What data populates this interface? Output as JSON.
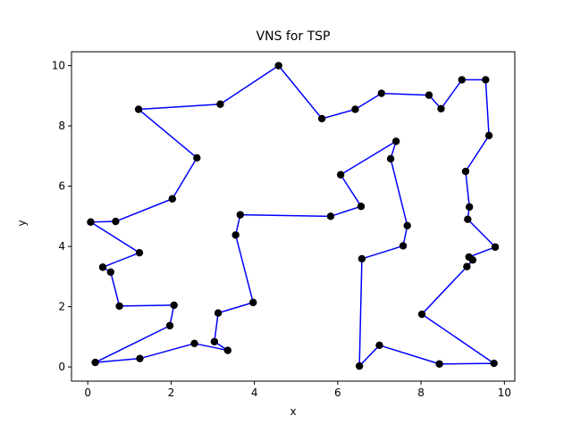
{
  "chart_data": {
    "type": "line",
    "title": "VNS for TSP",
    "xlabel": "x",
    "ylabel": "y",
    "xlim": [
      -0.39,
      10.25
    ],
    "ylim": [
      -0.47,
      10.46
    ],
    "xticks": [
      0,
      2,
      4,
      6,
      8,
      10
    ],
    "yticks": [
      0,
      2,
      4,
      6,
      8,
      10
    ],
    "grid": false,
    "line_color": "#0000ff",
    "marker_color": "#000000",
    "series": [
      {
        "closed": true,
        "points": [
          [
            0.07,
            4.81
          ],
          [
            0.67,
            4.83
          ],
          [
            2.03,
            5.58
          ],
          [
            2.62,
            6.94
          ],
          [
            1.22,
            8.55
          ],
          [
            3.18,
            8.72
          ],
          [
            4.58,
            10.0
          ],
          [
            5.62,
            8.24
          ],
          [
            6.42,
            8.55
          ],
          [
            7.05,
            9.08
          ],
          [
            8.19,
            9.02
          ],
          [
            8.48,
            8.57
          ],
          [
            8.98,
            9.53
          ],
          [
            9.55,
            9.53
          ],
          [
            9.63,
            7.68
          ],
          [
            9.07,
            6.49
          ],
          [
            9.16,
            5.31
          ],
          [
            9.12,
            4.9
          ],
          [
            9.78,
            3.98
          ],
          [
            9.15,
            3.65
          ],
          [
            9.24,
            3.55
          ],
          [
            9.1,
            3.33
          ],
          [
            8.02,
            1.75
          ],
          [
            9.75,
            0.12
          ],
          [
            8.44,
            0.1
          ],
          [
            7.0,
            0.72
          ],
          [
            6.52,
            0.03
          ],
          [
            6.58,
            3.59
          ],
          [
            7.57,
            4.02
          ],
          [
            7.67,
            4.69
          ],
          [
            7.27,
            6.91
          ],
          [
            7.4,
            7.49
          ],
          [
            6.07,
            6.38
          ],
          [
            6.56,
            5.33
          ],
          [
            5.83,
            5.0
          ],
          [
            3.66,
            5.05
          ],
          [
            3.55,
            4.38
          ],
          [
            3.97,
            2.14
          ],
          [
            3.13,
            1.79
          ],
          [
            3.04,
            0.84
          ],
          [
            3.36,
            0.55
          ],
          [
            2.56,
            0.78
          ],
          [
            1.25,
            0.28
          ],
          [
            0.18,
            0.15
          ],
          [
            1.97,
            1.37
          ],
          [
            2.07,
            2.05
          ],
          [
            0.76,
            2.02
          ],
          [
            0.55,
            3.15
          ],
          [
            0.36,
            3.31
          ],
          [
            1.24,
            3.79
          ]
        ]
      }
    ]
  }
}
